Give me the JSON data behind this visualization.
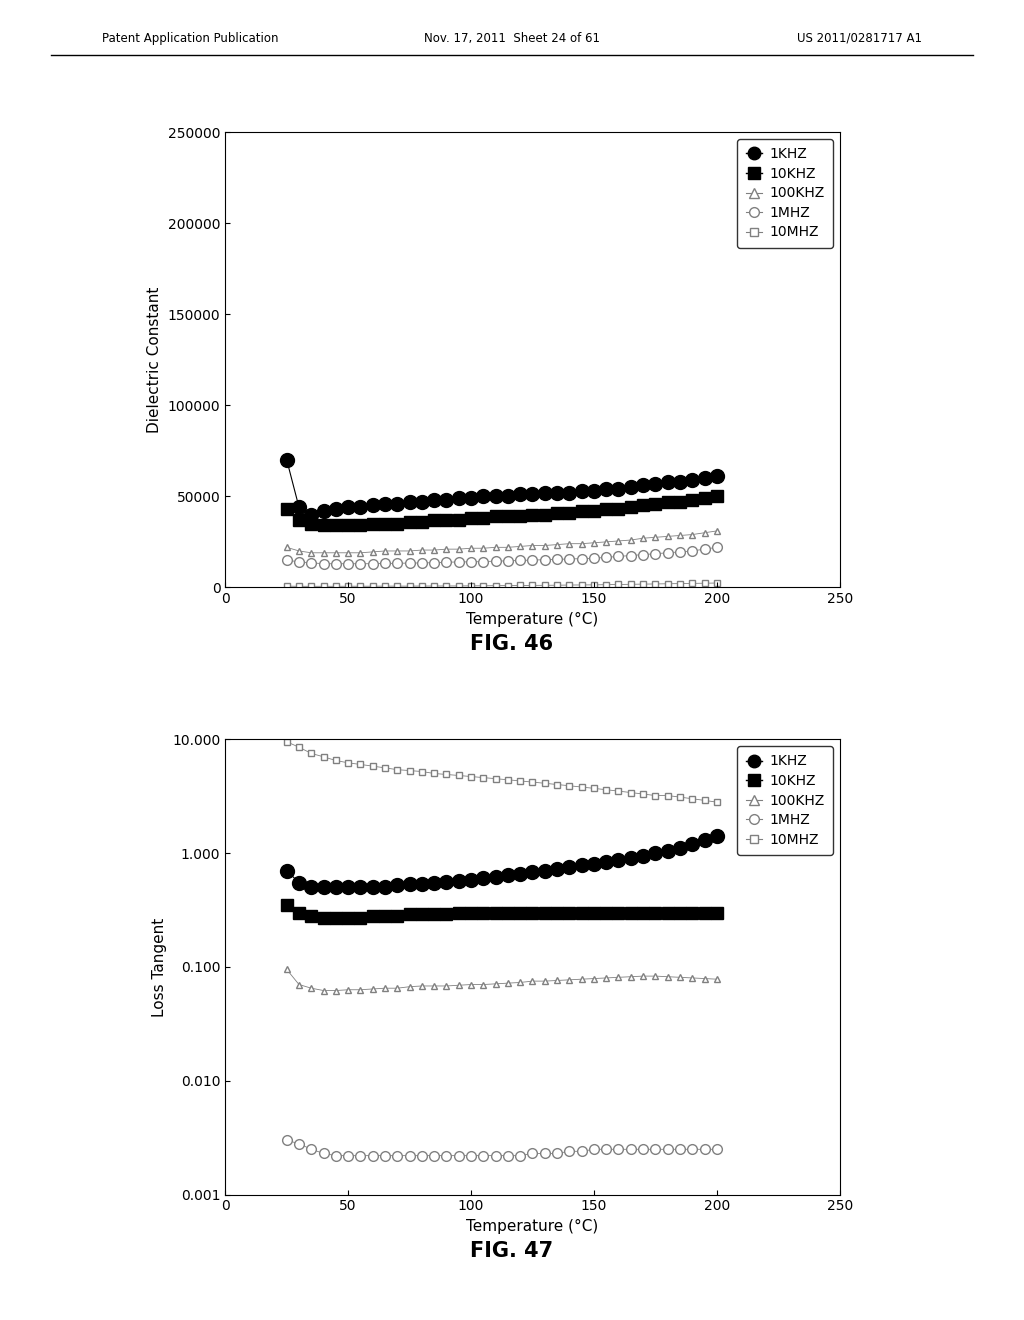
{
  "header_left": "Patent Application Publication",
  "header_mid": "Nov. 17, 2011  Sheet 24 of 61",
  "header_right": "US 2011/0281717 A1",
  "fig46_title": "FIG. 46",
  "fig47_title": "FIG. 47",
  "xlabel": "Temperature (°C)",
  "ylabel1": "Dielectric Constant",
  "ylabel2": "Loss Tangent",
  "legend_labels": [
    "1KHZ",
    "10KHZ",
    "100KHZ",
    "1MHZ",
    "10MHZ"
  ],
  "temp": [
    25,
    30,
    35,
    40,
    45,
    50,
    55,
    60,
    65,
    70,
    75,
    80,
    85,
    90,
    95,
    100,
    105,
    110,
    115,
    120,
    125,
    130,
    135,
    140,
    145,
    150,
    155,
    160,
    165,
    170,
    175,
    180,
    185,
    190,
    195,
    200
  ],
  "dc_1khz": [
    70000,
    44000,
    40000,
    42000,
    43000,
    44000,
    44000,
    45000,
    46000,
    46000,
    47000,
    47000,
    48000,
    48000,
    49000,
    49000,
    50000,
    50000,
    50000,
    51000,
    51000,
    52000,
    52000,
    52000,
    53000,
    53000,
    54000,
    54000,
    55000,
    56000,
    57000,
    58000,
    58000,
    59000,
    60000,
    61000
  ],
  "dc_10khz": [
    43000,
    37000,
    35000,
    34000,
    34000,
    34000,
    34000,
    35000,
    35000,
    35000,
    36000,
    36000,
    37000,
    37000,
    37000,
    38000,
    38000,
    39000,
    39000,
    39000,
    40000,
    40000,
    41000,
    41000,
    42000,
    42000,
    43000,
    43000,
    44000,
    45000,
    46000,
    47000,
    47000,
    48000,
    49000,
    50000
  ],
  "dc_100khz": [
    22000,
    20000,
    19000,
    19000,
    19000,
    19000,
    19000,
    19500,
    20000,
    20000,
    20000,
    20500,
    20500,
    21000,
    21000,
    21500,
    21500,
    22000,
    22000,
    22500,
    23000,
    23000,
    23500,
    24000,
    24000,
    24500,
    25000,
    25500,
    26000,
    27000,
    27500,
    28000,
    28500,
    29000,
    30000,
    31000
  ],
  "dc_1mhz": [
    15000,
    14000,
    13500,
    13000,
    13000,
    13000,
    13000,
    13000,
    13200,
    13200,
    13400,
    13400,
    13600,
    13800,
    14000,
    14000,
    14200,
    14400,
    14600,
    14800,
    15000,
    15200,
    15400,
    15600,
    15800,
    16000,
    16500,
    17000,
    17500,
    18000,
    18500,
    19000,
    19500,
    20000,
    21000,
    22000
  ],
  "dc_10mhz": [
    700,
    600,
    600,
    600,
    600,
    650,
    650,
    650,
    700,
    700,
    700,
    750,
    750,
    800,
    800,
    850,
    900,
    950,
    1000,
    1050,
    1100,
    1150,
    1200,
    1300,
    1350,
    1400,
    1500,
    1600,
    1700,
    1800,
    1900,
    2000,
    2100,
    2200,
    2300,
    2400
  ],
  "lt_1khz": [
    0.7,
    0.55,
    0.5,
    0.5,
    0.5,
    0.5,
    0.5,
    0.5,
    0.5,
    0.52,
    0.53,
    0.54,
    0.55,
    0.56,
    0.57,
    0.58,
    0.6,
    0.62,
    0.64,
    0.66,
    0.68,
    0.7,
    0.72,
    0.75,
    0.78,
    0.8,
    0.83,
    0.87,
    0.9,
    0.95,
    1.0,
    1.05,
    1.1,
    1.2,
    1.3,
    1.4
  ],
  "lt_10khz": [
    0.35,
    0.3,
    0.28,
    0.27,
    0.27,
    0.27,
    0.27,
    0.28,
    0.28,
    0.28,
    0.29,
    0.29,
    0.29,
    0.29,
    0.3,
    0.3,
    0.3,
    0.3,
    0.3,
    0.3,
    0.3,
    0.3,
    0.3,
    0.3,
    0.3,
    0.3,
    0.3,
    0.3,
    0.3,
    0.3,
    0.3,
    0.3,
    0.3,
    0.3,
    0.3,
    0.3
  ],
  "lt_100khz": [
    0.095,
    0.07,
    0.065,
    0.062,
    0.062,
    0.063,
    0.063,
    0.064,
    0.065,
    0.065,
    0.067,
    0.068,
    0.068,
    0.068,
    0.069,
    0.07,
    0.07,
    0.071,
    0.072,
    0.073,
    0.075,
    0.075,
    0.076,
    0.077,
    0.078,
    0.079,
    0.08,
    0.081,
    0.082,
    0.083,
    0.083,
    0.082,
    0.081,
    0.08,
    0.079,
    0.078
  ],
  "lt_1mhz": [
    0.003,
    0.0028,
    0.0025,
    0.0023,
    0.0022,
    0.0022,
    0.0022,
    0.0022,
    0.0022,
    0.0022,
    0.0022,
    0.0022,
    0.0022,
    0.0022,
    0.0022,
    0.0022,
    0.0022,
    0.0022,
    0.0022,
    0.0022,
    0.0023,
    0.0023,
    0.0023,
    0.0024,
    0.0024,
    0.0025,
    0.0025,
    0.0025,
    0.0025,
    0.0025,
    0.0025,
    0.0025,
    0.0025,
    0.0025,
    0.0025,
    0.0025
  ],
  "lt_10mhz": [
    9.5,
    8.5,
    7.5,
    7.0,
    6.5,
    6.2,
    6.0,
    5.8,
    5.6,
    5.4,
    5.3,
    5.2,
    5.0,
    4.9,
    4.8,
    4.7,
    4.6,
    4.5,
    4.4,
    4.3,
    4.2,
    4.1,
    4.0,
    3.9,
    3.8,
    3.7,
    3.6,
    3.5,
    3.4,
    3.3,
    3.2,
    3.2,
    3.1,
    3.0,
    2.9,
    2.8
  ],
  "xlim": [
    0,
    250
  ],
  "dc_ylim": [
    0,
    250000
  ],
  "dc_yticks": [
    0,
    50000,
    100000,
    150000,
    200000,
    250000
  ],
  "lt_ylim": [
    0.001,
    10.0
  ],
  "lt_yticks_vals": [
    0.001,
    0.01,
    0.1,
    1.0,
    10.0
  ],
  "lt_ytick_labels": [
    "0.001",
    "0.010",
    "0.100",
    "1.000",
    "10.000"
  ],
  "bg_color": "#ffffff"
}
